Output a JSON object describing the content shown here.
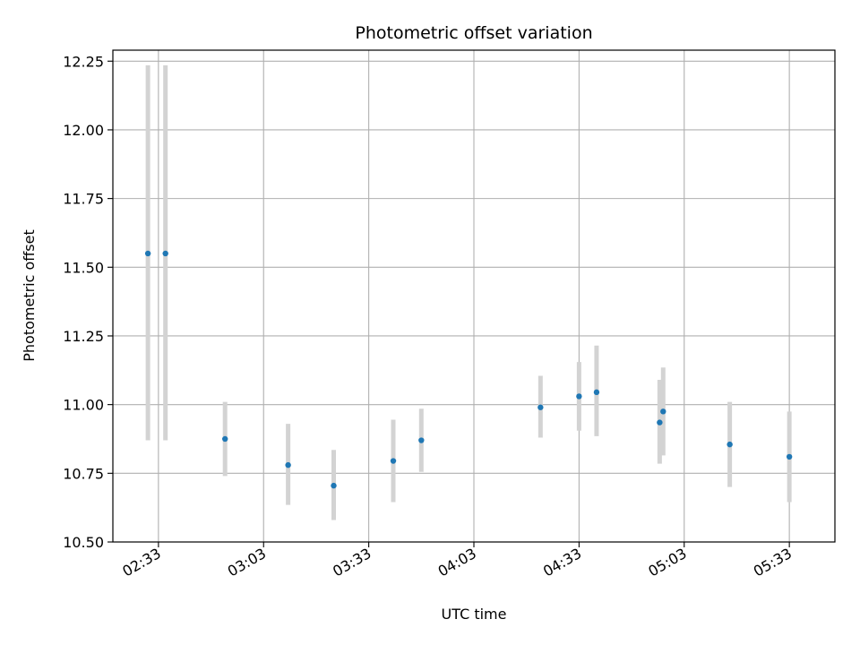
{
  "chart_data": {
    "type": "scatter",
    "title": "Photometric offset variation",
    "xlabel": "UTC time",
    "ylabel": "Photometric offset",
    "xlim": [
      "02:20",
      "05:46"
    ],
    "ylim": [
      10.5,
      12.29
    ],
    "y_ticks": [
      "10.50",
      "10.75",
      "11.00",
      "11.25",
      "11.50",
      "11.75",
      "12.00",
      "12.25"
    ],
    "x_ticks": [
      "02:33",
      "03:03",
      "03:33",
      "04:03",
      "04:33",
      "05:03",
      "05:33"
    ],
    "grid": true,
    "colors": {
      "point": "#1f77b4",
      "errorbar": "#d3d3d3",
      "grid": "#b0b0b0"
    },
    "points": [
      {
        "x": "02:30",
        "y": 11.55,
        "ylow": 10.87,
        "yhigh": 12.235
      },
      {
        "x": "02:35",
        "y": 11.55,
        "ylow": 10.87,
        "yhigh": 12.235
      },
      {
        "x": "02:52",
        "y": 10.875,
        "ylow": 10.74,
        "yhigh": 11.01
      },
      {
        "x": "03:10",
        "y": 10.78,
        "ylow": 10.635,
        "yhigh": 10.93
      },
      {
        "x": "03:23",
        "y": 10.705,
        "ylow": 10.58,
        "yhigh": 10.835
      },
      {
        "x": "03:40",
        "y": 10.795,
        "ylow": 10.645,
        "yhigh": 10.945
      },
      {
        "x": "03:48",
        "y": 10.87,
        "ylow": 10.755,
        "yhigh": 10.985
      },
      {
        "x": "04:22",
        "y": 10.99,
        "ylow": 10.88,
        "yhigh": 11.105
      },
      {
        "x": "04:33",
        "y": 11.03,
        "ylow": 10.905,
        "yhigh": 11.155
      },
      {
        "x": "04:38",
        "y": 11.045,
        "ylow": 10.885,
        "yhigh": 11.215
      },
      {
        "x": "04:56",
        "y": 10.935,
        "ylow": 10.785,
        "yhigh": 11.09
      },
      {
        "x": "04:57",
        "y": 10.975,
        "ylow": 10.815,
        "yhigh": 11.135
      },
      {
        "x": "05:16",
        "y": 10.855,
        "ylow": 10.7,
        "yhigh": 11.01
      },
      {
        "x": "05:33",
        "y": 10.81,
        "ylow": 10.645,
        "yhigh": 10.975
      }
    ]
  }
}
